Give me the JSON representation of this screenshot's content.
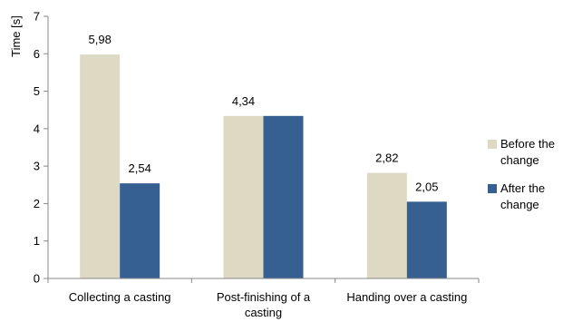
{
  "chart_data": {
    "type": "bar",
    "ylabel": "Time [s]",
    "ylim": [
      0,
      7
    ],
    "yticks": [
      0,
      1,
      2,
      3,
      4,
      5,
      6,
      7
    ],
    "ytick_labels": [
      "0",
      "1",
      "2",
      "3",
      "4",
      "5",
      "6",
      "7"
    ],
    "grid": false,
    "legend_position": "right",
    "categories": [
      "Collecting a casting",
      "Post-finishing of a casting",
      "Handing over a casting"
    ],
    "category_label_lines": [
      [
        "Collecting a casting"
      ],
      [
        "Post-finishing of a",
        "casting"
      ],
      [
        "Handing over a casting"
      ]
    ],
    "series": [
      {
        "name": "Before the change",
        "name_lines": [
          "Before the",
          "change"
        ],
        "color": "#ddd9c3",
        "values": [
          5.98,
          4.34,
          2.82
        ],
        "value_labels": [
          "5,98",
          "4,34",
          "2,82"
        ]
      },
      {
        "name": "After the change",
        "name_lines": [
          "After the",
          "change"
        ],
        "color": "#376092",
        "values": [
          2.54,
          4.34,
          2.05
        ],
        "value_labels": [
          "2,54",
          "",
          "2,05"
        ]
      }
    ]
  }
}
